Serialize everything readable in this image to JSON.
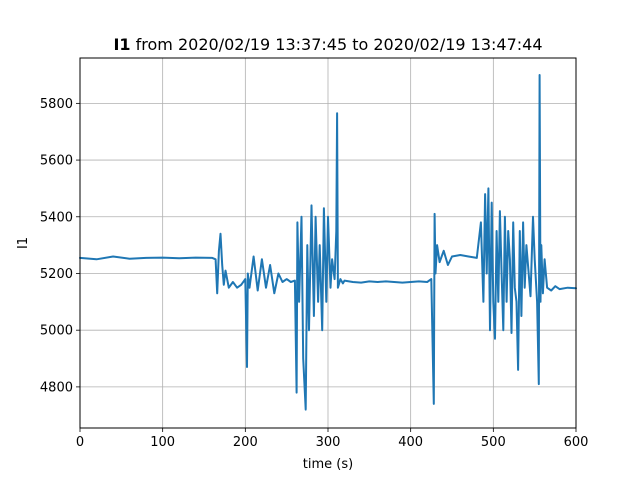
{
  "chart_data": {
    "type": "line",
    "title_bold": "I1",
    "title_rest": " from 2020/02/19 13:37:45 to 2020/02/19 13:47:44",
    "xlabel": "time (s)",
    "ylabel": "I1",
    "xlim": [
      0,
      600
    ],
    "ylim": [
      4655,
      5960
    ],
    "x_ticks": [
      0,
      100,
      200,
      300,
      400,
      500,
      600
    ],
    "y_ticks": [
      4800,
      5000,
      5200,
      5400,
      5600,
      5800
    ],
    "grid": true,
    "line_color": "#1f77b4",
    "series": [
      {
        "x": [
          0,
          20,
          40,
          60,
          80,
          100,
          120,
          140,
          160,
          164,
          166,
          168,
          170,
          172,
          174,
          176,
          180,
          185,
          190,
          195,
          200,
          202,
          203,
          205,
          210,
          215,
          220,
          225,
          230,
          235,
          240,
          245,
          250,
          255,
          260,
          262,
          263,
          265,
          268,
          270,
          273,
          275,
          277,
          280,
          283,
          285,
          288,
          290,
          293,
          295,
          298,
          300,
          303,
          305,
          308,
          310,
          311,
          312,
          315,
          318,
          320,
          330,
          340,
          350,
          360,
          370,
          380,
          390,
          400,
          410,
          420,
          425,
          428,
          429,
          430,
          432,
          435,
          440,
          445,
          450,
          460,
          470,
          480,
          485,
          488,
          490,
          492,
          494,
          496,
          498,
          500,
          502,
          504,
          506,
          508,
          510,
          512,
          514,
          516,
          518,
          520,
          522,
          524,
          526,
          528,
          530,
          532,
          534,
          536,
          538,
          540,
          545,
          548,
          550,
          553,
          555,
          556,
          557,
          558,
          560,
          562,
          565,
          570,
          575,
          580,
          590,
          600
        ],
        "y": [
          5255,
          5250,
          5260,
          5252,
          5255,
          5256,
          5254,
          5256,
          5255,
          5250,
          5130,
          5280,
          5340,
          5230,
          5160,
          5210,
          5150,
          5170,
          5150,
          5160,
          5180,
          4870,
          5200,
          5150,
          5260,
          5140,
          5250,
          5150,
          5230,
          5130,
          5200,
          5170,
          5180,
          5170,
          5175,
          4780,
          5380,
          5100,
          5400,
          4900,
          4720,
          5300,
          5000,
          5440,
          5050,
          5400,
          5100,
          5300,
          5000,
          5430,
          5100,
          5400,
          5150,
          5250,
          5180,
          5350,
          5765,
          5150,
          5180,
          5165,
          5175,
          5170,
          5168,
          5172,
          5170,
          5172,
          5170,
          5168,
          5170,
          5172,
          5170,
          5180,
          4740,
          5410,
          5200,
          5300,
          5240,
          5280,
          5230,
          5260,
          5265,
          5260,
          5255,
          5380,
          5100,
          5480,
          5200,
          5500,
          5000,
          5450,
          5100,
          4970,
          5350,
          5100,
          5420,
          5200,
          5000,
          5400,
          5100,
          5350,
          5250,
          4990,
          5380,
          5150,
          5100,
          4860,
          5350,
          5050,
          5380,
          5150,
          5300,
          5120,
          5400,
          5250,
          5100,
          4810,
          5900,
          5100,
          5300,
          5130,
          5250,
          5150,
          5140,
          5155,
          5145,
          5150,
          5148
        ]
      }
    ]
  }
}
